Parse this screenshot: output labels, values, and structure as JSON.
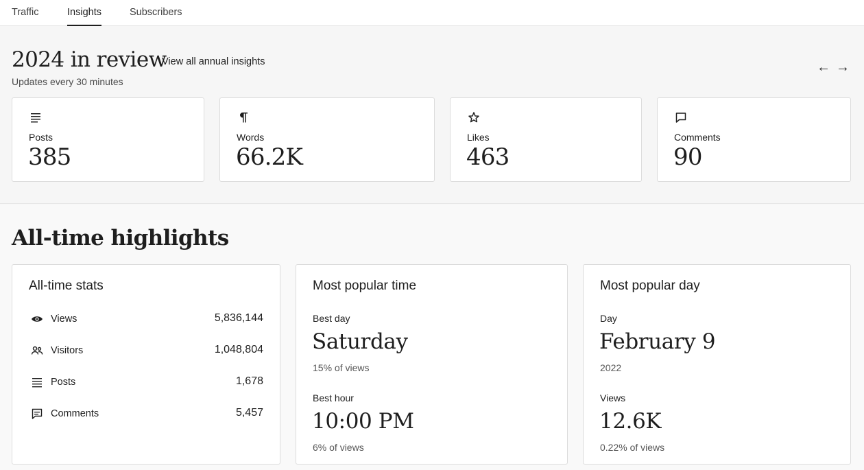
{
  "tabs": [
    {
      "label": "Traffic",
      "active": false
    },
    {
      "label": "Insights",
      "active": true
    },
    {
      "label": "Subscribers",
      "active": false
    }
  ],
  "annual": {
    "title": "2024 in review",
    "link": "View all annual insights",
    "subtitle": "Updates every 30 minutes",
    "prev_icon": "arrow-left-icon",
    "next_icon": "arrow-right-icon",
    "cards": [
      {
        "label": "Posts",
        "value": "385",
        "icon": "lines-icon"
      },
      {
        "label": "Words",
        "value": "66.2K",
        "icon": "pilcrow-icon"
      },
      {
        "label": "Likes",
        "value": "463",
        "icon": "star-icon"
      },
      {
        "label": "Comments",
        "value": "90",
        "icon": "comment-icon"
      }
    ]
  },
  "highlights": {
    "title": "All-time highlights",
    "alltime": {
      "title": "All-time stats",
      "rows": [
        {
          "label": "Views",
          "value": "5,836,144",
          "icon": "eye-icon"
        },
        {
          "label": "Visitors",
          "value": "1,048,804",
          "icon": "people-icon"
        },
        {
          "label": "Posts",
          "value": "1,678",
          "icon": "lines-icon"
        },
        {
          "label": "Comments",
          "value": "5,457",
          "icon": "comment-icon"
        }
      ]
    },
    "time": {
      "title": "Most popular time",
      "best_day_label": "Best day",
      "best_day": "Saturday",
      "best_day_pct": "15% of views",
      "best_hour_label": "Best hour",
      "best_hour": "10:00 PM",
      "best_hour_pct": "6% of views"
    },
    "day": {
      "title": "Most popular day",
      "day_label": "Day",
      "day": "February 9",
      "year": "2022",
      "views_label": "Views",
      "views": "12.6K",
      "views_pct": "0.22% of views"
    }
  }
}
